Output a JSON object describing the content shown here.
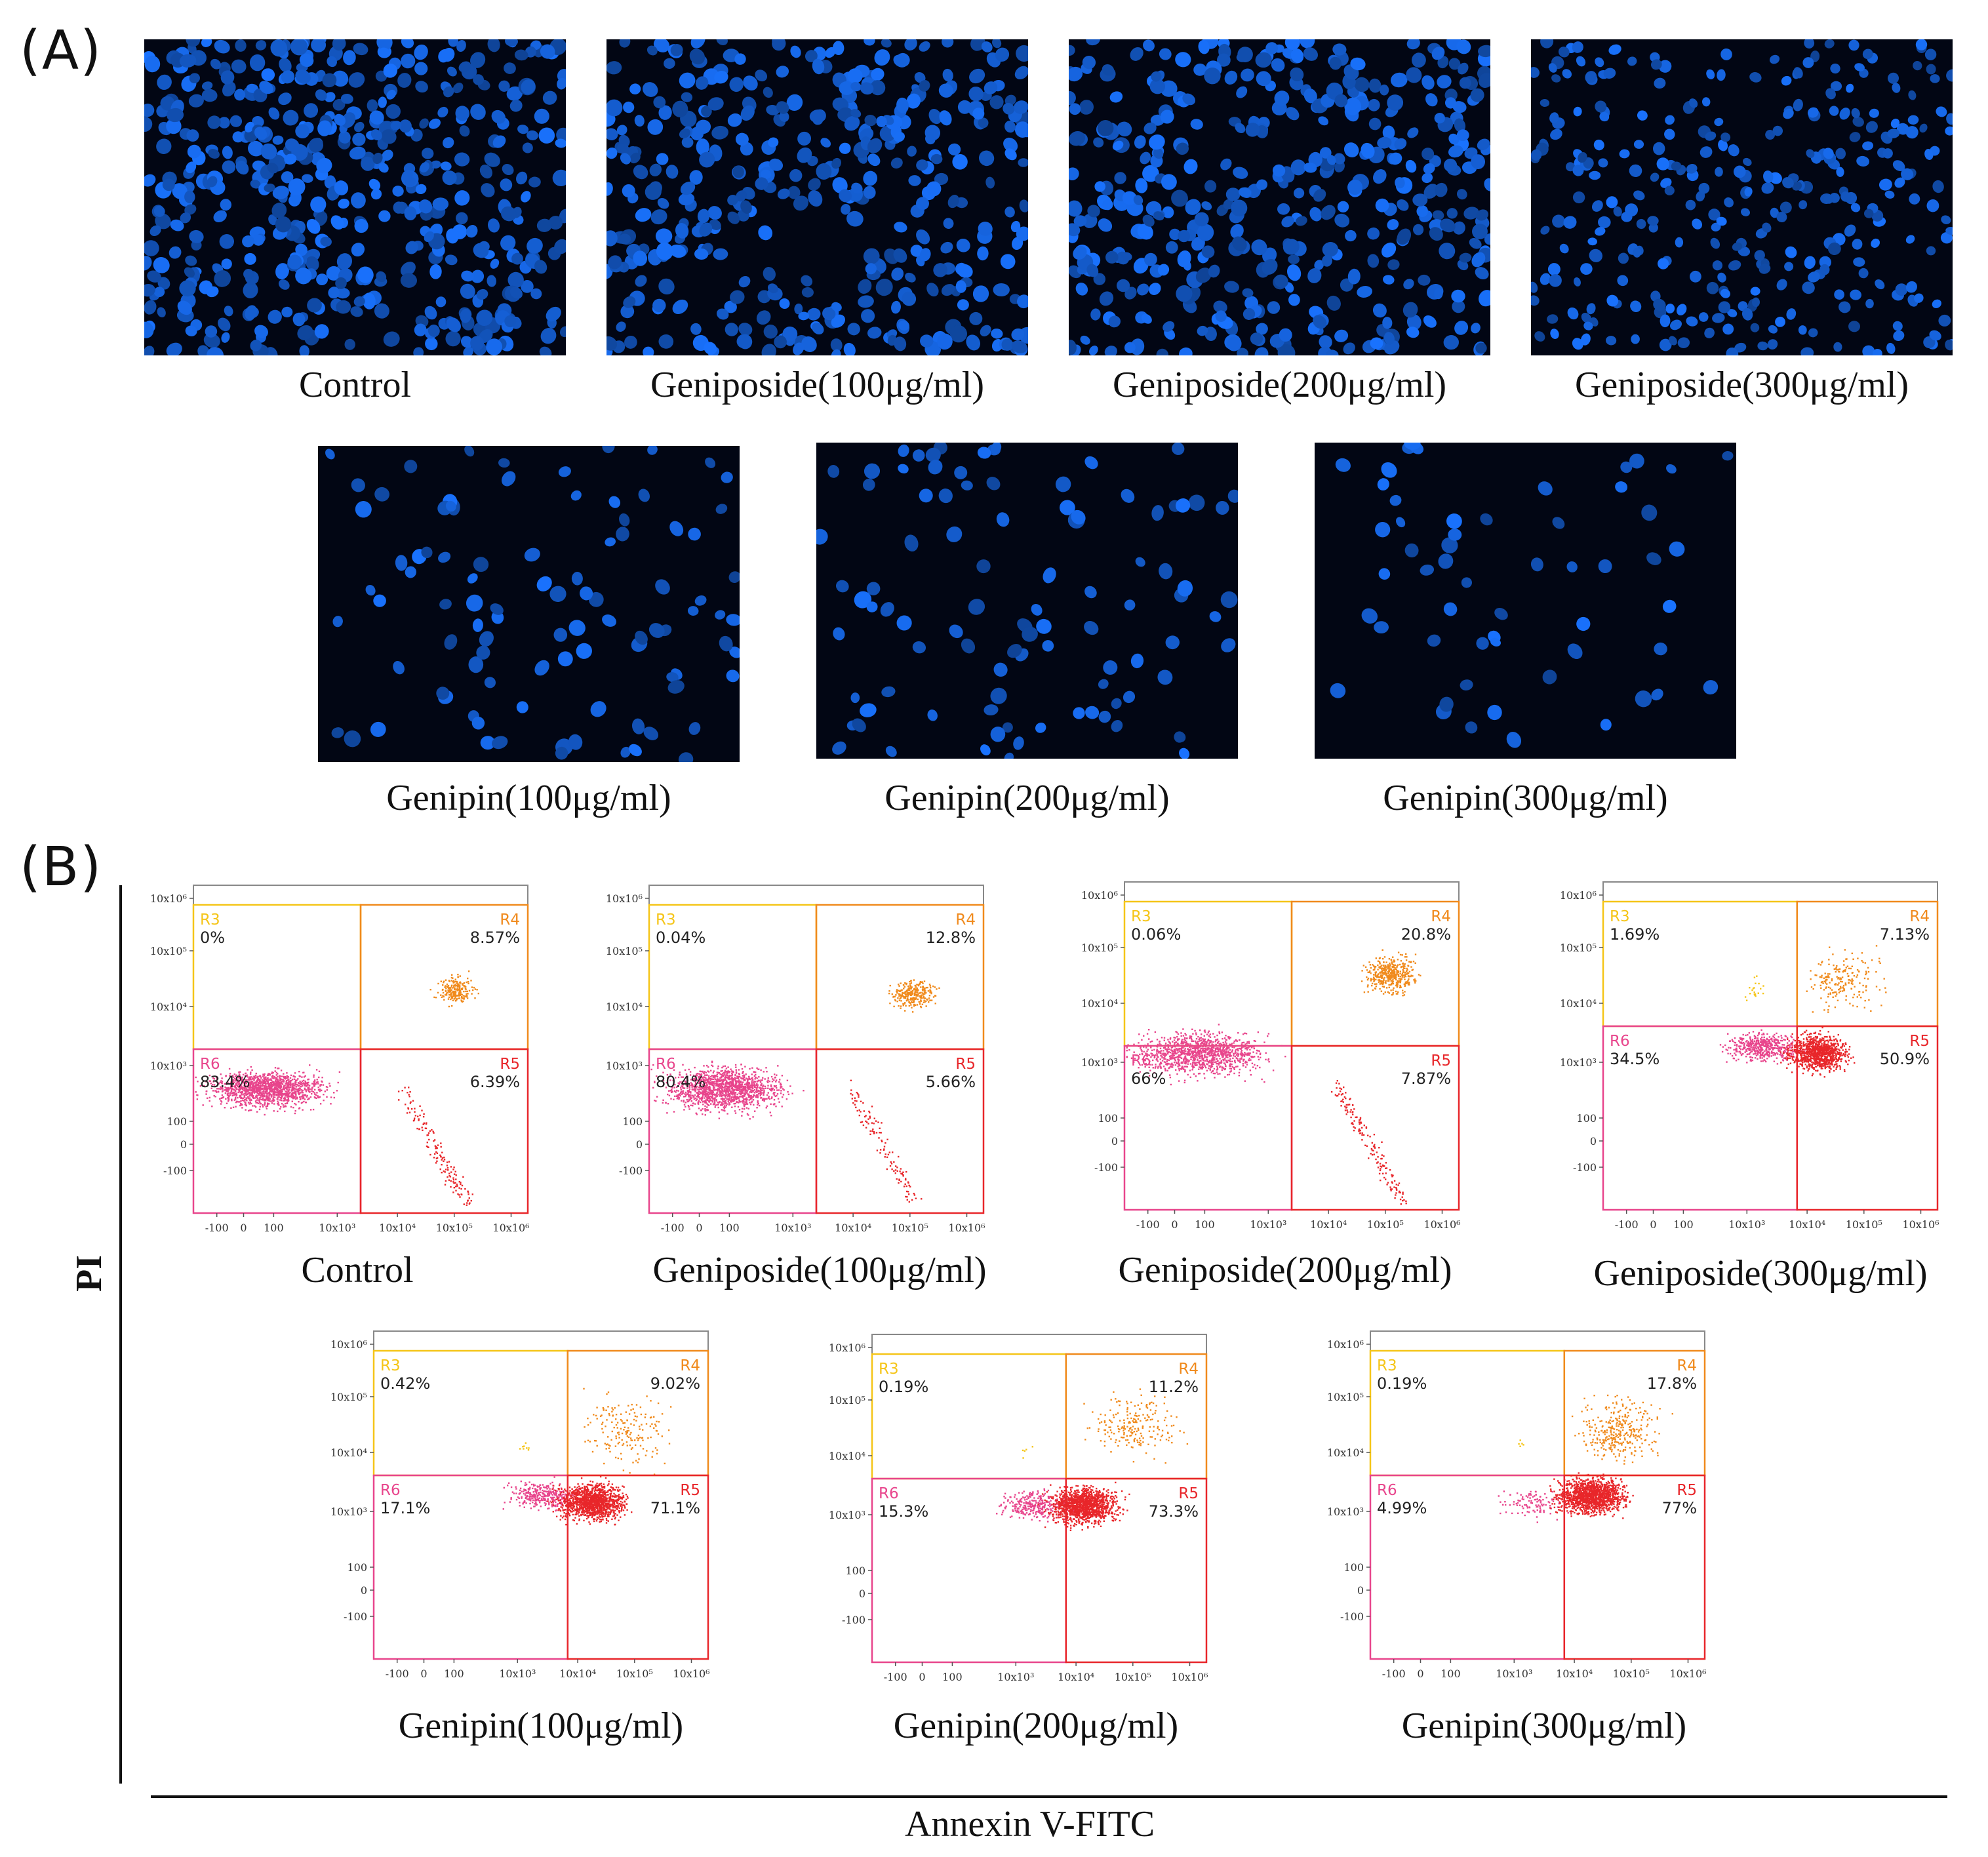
{
  "panel_a": {
    "label": "(A)",
    "images": [
      {
        "caption": "Control",
        "density": "very high"
      },
      {
        "caption": "Geniposide(100μg/ml)",
        "density": "high"
      },
      {
        "caption": "Geniposide(200μg/ml)",
        "density": "high"
      },
      {
        "caption": "Geniposide(300μg/ml)",
        "density": "moderate"
      },
      {
        "caption": "Genipin(100μg/ml)",
        "density": "low"
      },
      {
        "caption": "Genipin(200μg/ml)",
        "density": "low"
      },
      {
        "caption": "Genipin(300μg/ml)",
        "density": "very low"
      }
    ]
  },
  "panel_b": {
    "label": "(B)",
    "y_axis_label": "PI",
    "x_axis_label": "Annexin V-FITC",
    "colors": {
      "R3": "#f5c518",
      "R4": "#f08a1c",
      "R5": "#e8262a",
      "R6": "#e8458c"
    }
  },
  "chart_data": [
    {
      "type": "scatter",
      "title": "Control",
      "x_ticks": [
        "-100",
        "0",
        "100",
        "10x10³",
        "10x10⁴",
        "10x10⁵",
        "10x10⁶"
      ],
      "y_ticks": [
        "10x10⁶",
        "10x10⁵",
        "10x10⁴",
        "10x10³",
        "100",
        "0",
        "-100"
      ],
      "regions": {
        "R3": "0%",
        "R4": "8.57%",
        "R5": "6.39%",
        "R6": "83.4%"
      }
    },
    {
      "type": "scatter",
      "title": "Geniposide(100μg/ml)",
      "x_ticks": [
        "-100",
        "0",
        "100",
        "10x10³",
        "10x10⁴",
        "10x10⁵",
        "10x10⁶"
      ],
      "y_ticks": [
        "10x10⁶",
        "10x10⁵",
        "10x10⁴",
        "10x10³",
        "100",
        "0",
        "-100"
      ],
      "regions": {
        "R3": "0.04%",
        "R4": "12.8%",
        "R5": "5.66%",
        "R6": "80.4%"
      }
    },
    {
      "type": "scatter",
      "title": "Geniposide(200μg/ml)",
      "x_ticks": [
        "-100",
        "0",
        "100",
        "10x10³",
        "10x10⁴",
        "10x10⁵",
        "10x10⁶"
      ],
      "y_ticks": [
        "10x10⁶",
        "10x10⁵",
        "10x10⁴",
        "10x10³",
        "100",
        "0",
        "-100"
      ],
      "regions": {
        "R3": "0.06%",
        "R4": "20.8%",
        "R5": "7.87%",
        "R6": "66%"
      }
    },
    {
      "type": "scatter",
      "title": "Geniposide(300μg/ml)",
      "x_ticks": [
        "-100",
        "0",
        "100",
        "10x10³",
        "10x10⁴",
        "10x10⁵",
        "10x10⁶"
      ],
      "y_ticks": [
        "10x10⁶",
        "10x10⁵",
        "10x10⁴",
        "10x10³",
        "100",
        "0",
        "-100"
      ],
      "regions": {
        "R3": "1.69%",
        "R4": "7.13%",
        "R5": "50.9%",
        "R6": "34.5%"
      }
    },
    {
      "type": "scatter",
      "title": "Genipin(100μg/ml)",
      "x_ticks": [
        "-100",
        "0",
        "100",
        "10x10³",
        "10x10⁴",
        "10x10⁵",
        "10x10⁶"
      ],
      "y_ticks": [
        "10x10⁶",
        "10x10⁵",
        "10x10⁴",
        "10x10³",
        "100",
        "0",
        "-100"
      ],
      "regions": {
        "R3": "0.42%",
        "R4": "9.02%",
        "R5": "71.1%",
        "R6": "17.1%"
      }
    },
    {
      "type": "scatter",
      "title": "Genipin(200μg/ml)",
      "x_ticks": [
        "-100",
        "0",
        "100",
        "10x10³",
        "10x10⁴",
        "10x10⁵",
        "10x10⁶"
      ],
      "y_ticks": [
        "10x10⁶",
        "10x10⁵",
        "10x10⁴",
        "10x10³",
        "100",
        "0",
        "-100"
      ],
      "regions": {
        "R3": "0.19%",
        "R4": "11.2%",
        "R5": "73.3%",
        "R6": "15.3%"
      }
    },
    {
      "type": "scatter",
      "title": "Genipin(300μg/ml)",
      "x_ticks": [
        "-100",
        "0",
        "100",
        "10x10³",
        "10x10⁴",
        "10x10⁵",
        "10x10⁶"
      ],
      "y_ticks": [
        "10x10⁶",
        "10x10⁵",
        "10x10⁴",
        "10x10³",
        "100",
        "0",
        "-100"
      ],
      "regions": {
        "R3": "0.19%",
        "R4": "17.8%",
        "R5": "77%",
        "R6": "4.99%"
      }
    }
  ]
}
